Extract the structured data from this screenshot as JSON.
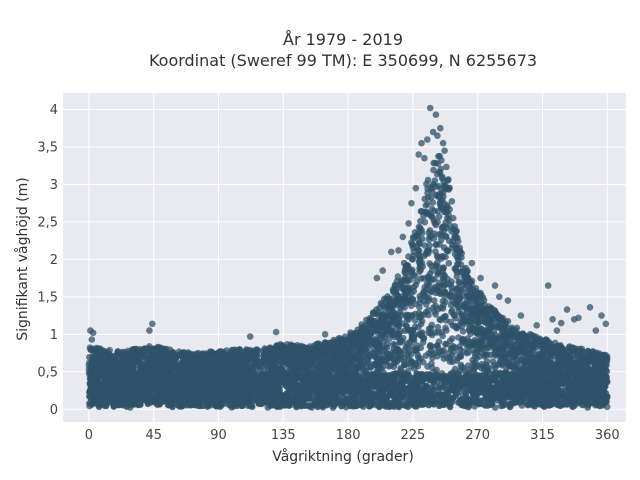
{
  "chart_data": {
    "type": "scatter",
    "title_line1": "År 1979 - 2019",
    "title_line2": "Koordinat (Sweref 99 TM): E 350699, N 6255673",
    "xlabel": "Vågriktning (grader)",
    "ylabel": "Signifikant våghöjd (m)",
    "xlim": [
      -18,
      373
    ],
    "ylim": [
      -0.17,
      4.22
    ],
    "x_ticks": [
      0,
      45,
      90,
      135,
      180,
      225,
      270,
      315,
      360
    ],
    "x_tick_labels": [
      "0",
      "45",
      "90",
      "135",
      "180",
      "225",
      "270",
      "315",
      "360"
    ],
    "y_ticks": [
      0,
      0.5,
      1,
      1.5,
      2,
      2.5,
      3,
      3.5,
      4
    ],
    "y_tick_labels": [
      "0",
      "0,5",
      "1",
      "1,5",
      "2",
      "2,5",
      "3",
      "3,5",
      "4"
    ],
    "grid": true,
    "plot_background": "#E9E9F0",
    "marker_color": "#2F5369",
    "envelope": {
      "x": [
        0,
        10,
        20,
        30,
        45,
        60,
        75,
        90,
        105,
        120,
        135,
        150,
        165,
        180,
        190,
        200,
        210,
        220,
        228,
        234,
        240,
        244,
        248,
        252,
        256,
        260,
        265,
        270,
        280,
        290,
        300,
        315,
        330,
        345,
        360
      ],
      "y": [
        0.85,
        0.8,
        0.78,
        0.8,
        0.85,
        0.78,
        0.75,
        0.78,
        0.8,
        0.8,
        0.88,
        0.85,
        0.9,
        1.0,
        1.15,
        1.35,
        1.6,
        2.0,
        2.5,
        3.0,
        3.35,
        3.4,
        3.3,
        2.8,
        2.3,
        2.0,
        1.8,
        1.6,
        1.35,
        1.2,
        1.05,
        0.95,
        0.85,
        0.8,
        0.72
      ]
    },
    "outliers": [
      {
        "x": 1,
        "y": 1.05
      },
      {
        "x": 3,
        "y": 1.02
      },
      {
        "x": 2,
        "y": 0.93
      },
      {
        "x": 44,
        "y": 1.14
      },
      {
        "x": 42,
        "y": 1.05
      },
      {
        "x": 130,
        "y": 1.03
      },
      {
        "x": 112,
        "y": 0.97
      },
      {
        "x": 164,
        "y": 1.0
      },
      {
        "x": 200,
        "y": 1.75
      },
      {
        "x": 204,
        "y": 1.85
      },
      {
        "x": 210,
        "y": 2.1
      },
      {
        "x": 215,
        "y": 2.12
      },
      {
        "x": 218,
        "y": 2.3
      },
      {
        "x": 222,
        "y": 2.48
      },
      {
        "x": 224,
        "y": 2.75
      },
      {
        "x": 227,
        "y": 2.95
      },
      {
        "x": 229,
        "y": 3.4
      },
      {
        "x": 231,
        "y": 3.55
      },
      {
        "x": 233,
        "y": 3.35
      },
      {
        "x": 235,
        "y": 3.6
      },
      {
        "x": 237,
        "y": 4.02
      },
      {
        "x": 239,
        "y": 3.7
      },
      {
        "x": 241,
        "y": 3.93
      },
      {
        "x": 242,
        "y": 3.65
      },
      {
        "x": 244,
        "y": 3.75
      },
      {
        "x": 246,
        "y": 3.55
      },
      {
        "x": 247,
        "y": 3.45
      },
      {
        "x": 250,
        "y": 2.95
      },
      {
        "x": 253,
        "y": 2.55
      },
      {
        "x": 258,
        "y": 2.1
      },
      {
        "x": 266,
        "y": 1.95
      },
      {
        "x": 272,
        "y": 1.75
      },
      {
        "x": 282,
        "y": 1.65
      },
      {
        "x": 285,
        "y": 1.5
      },
      {
        "x": 291,
        "y": 1.45
      },
      {
        "x": 300,
        "y": 1.25
      },
      {
        "x": 311,
        "y": 1.12
      },
      {
        "x": 319,
        "y": 1.65
      },
      {
        "x": 322,
        "y": 1.2
      },
      {
        "x": 325,
        "y": 1.05
      },
      {
        "x": 328,
        "y": 1.15
      },
      {
        "x": 332,
        "y": 1.33
      },
      {
        "x": 337,
        "y": 1.2
      },
      {
        "x": 340,
        "y": 1.22
      },
      {
        "x": 348,
        "y": 1.36
      },
      {
        "x": 352,
        "y": 1.05
      },
      {
        "x": 356,
        "y": 1.25
      },
      {
        "x": 359,
        "y": 1.14
      }
    ]
  }
}
